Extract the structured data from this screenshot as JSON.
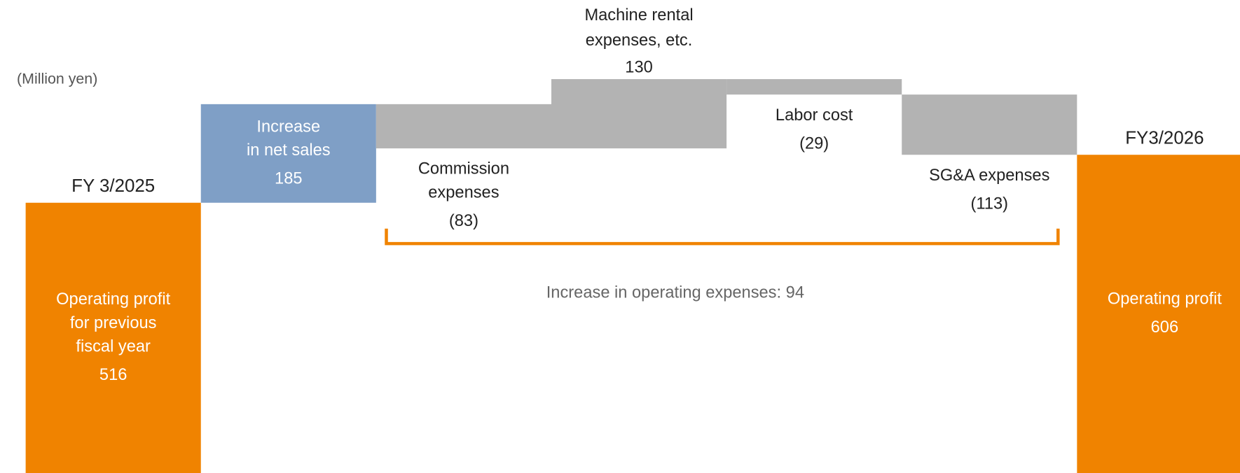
{
  "chart_data": {
    "type": "waterfall",
    "unit_label": "(Million yen)",
    "categories": [
      [
        "Operating profit",
        "for previous",
        "fiscal year"
      ],
      [
        "Increase",
        "in net sales"
      ],
      [
        "Commission",
        "expenses"
      ],
      [
        "Machine rental",
        "expenses, etc."
      ],
      [
        "Labor cost"
      ],
      [
        "SG&A expenses"
      ],
      [
        "Operating profit"
      ]
    ],
    "headers": [
      "FY 3/2025",
      null,
      null,
      null,
      null,
      null,
      "FY3/2026"
    ],
    "measure": [
      "absolute",
      "relative",
      "relative",
      "relative",
      "relative",
      "relative",
      "absolute"
    ],
    "values": [
      516,
      185,
      -83,
      130,
      -29,
      -113,
      606
    ],
    "value_labels": [
      "516",
      "185",
      "(83)",
      "130",
      "(29)",
      "(113)",
      "606"
    ],
    "colors": [
      "#f08300",
      "#7f9fc6",
      "#b3b3b3",
      "#b3b3b3",
      "#b3b3b3",
      "#b3b3b3",
      "#f08300"
    ],
    "bracket_color": "#f08300",
    "annotation": "Increase in operating expenses: 94"
  }
}
